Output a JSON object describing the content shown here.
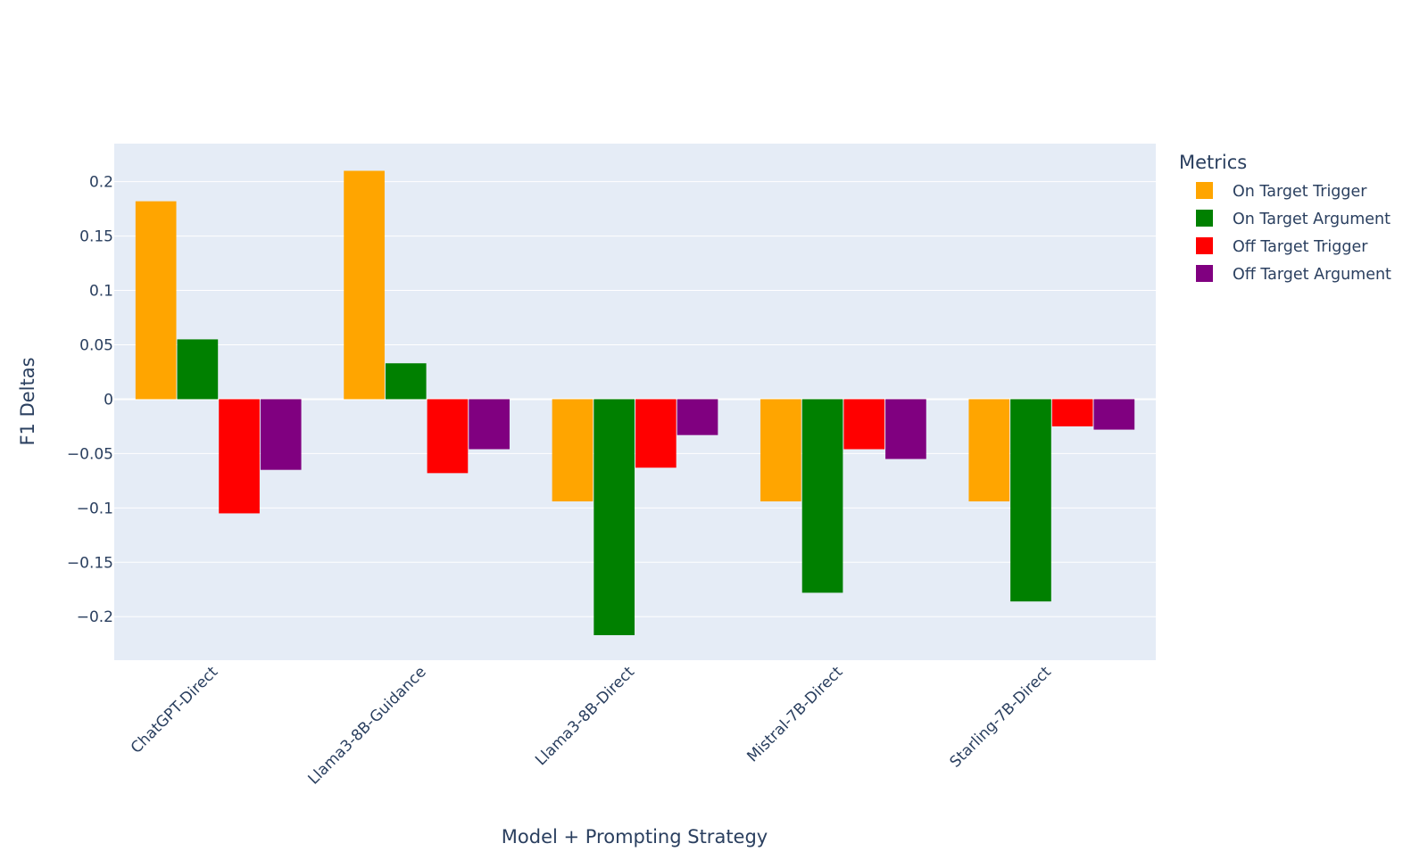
{
  "chart_data": {
    "type": "bar",
    "title": "",
    "xlabel": "Model + Prompting Strategy",
    "ylabel": "F1 Deltas",
    "categories": [
      "ChatGPT-Direct",
      "Llama3-8B-Guidance",
      "Llama3-8B-Direct",
      "Mistral-7B-Direct",
      "Starling-7B-Direct"
    ],
    "series": [
      {
        "name": "On Target Trigger",
        "color": "#FFA500",
        "values": [
          0.182,
          0.21,
          -0.094,
          -0.094,
          -0.094
        ]
      },
      {
        "name": "On Target Argument",
        "color": "#008000",
        "values": [
          0.055,
          0.033,
          -0.217,
          -0.178,
          -0.186
        ]
      },
      {
        "name": "Off Target Trigger",
        "color": "#FF0000",
        "values": [
          -0.105,
          -0.068,
          -0.063,
          -0.046,
          -0.025
        ]
      },
      {
        "name": "Off Target Argument",
        "color": "#800080",
        "values": [
          -0.065,
          -0.046,
          -0.033,
          -0.055,
          -0.028
        ]
      }
    ],
    "ylim": [
      -0.24,
      0.235
    ],
    "yticks": [
      -0.2,
      -0.15,
      -0.1,
      -0.05,
      0,
      0.05,
      0.1,
      0.15,
      0.2
    ],
    "ytick_labels": [
      "−0.2",
      "−0.15",
      "−0.1",
      "−0.05",
      "0",
      "0.05",
      "0.1",
      "0.15",
      "0.2"
    ],
    "grid": true,
    "legend_title": "Metrics",
    "legend_position": "right",
    "plot_bgcolor": "#E5ECF6",
    "text_color": "#2a3f5f"
  }
}
